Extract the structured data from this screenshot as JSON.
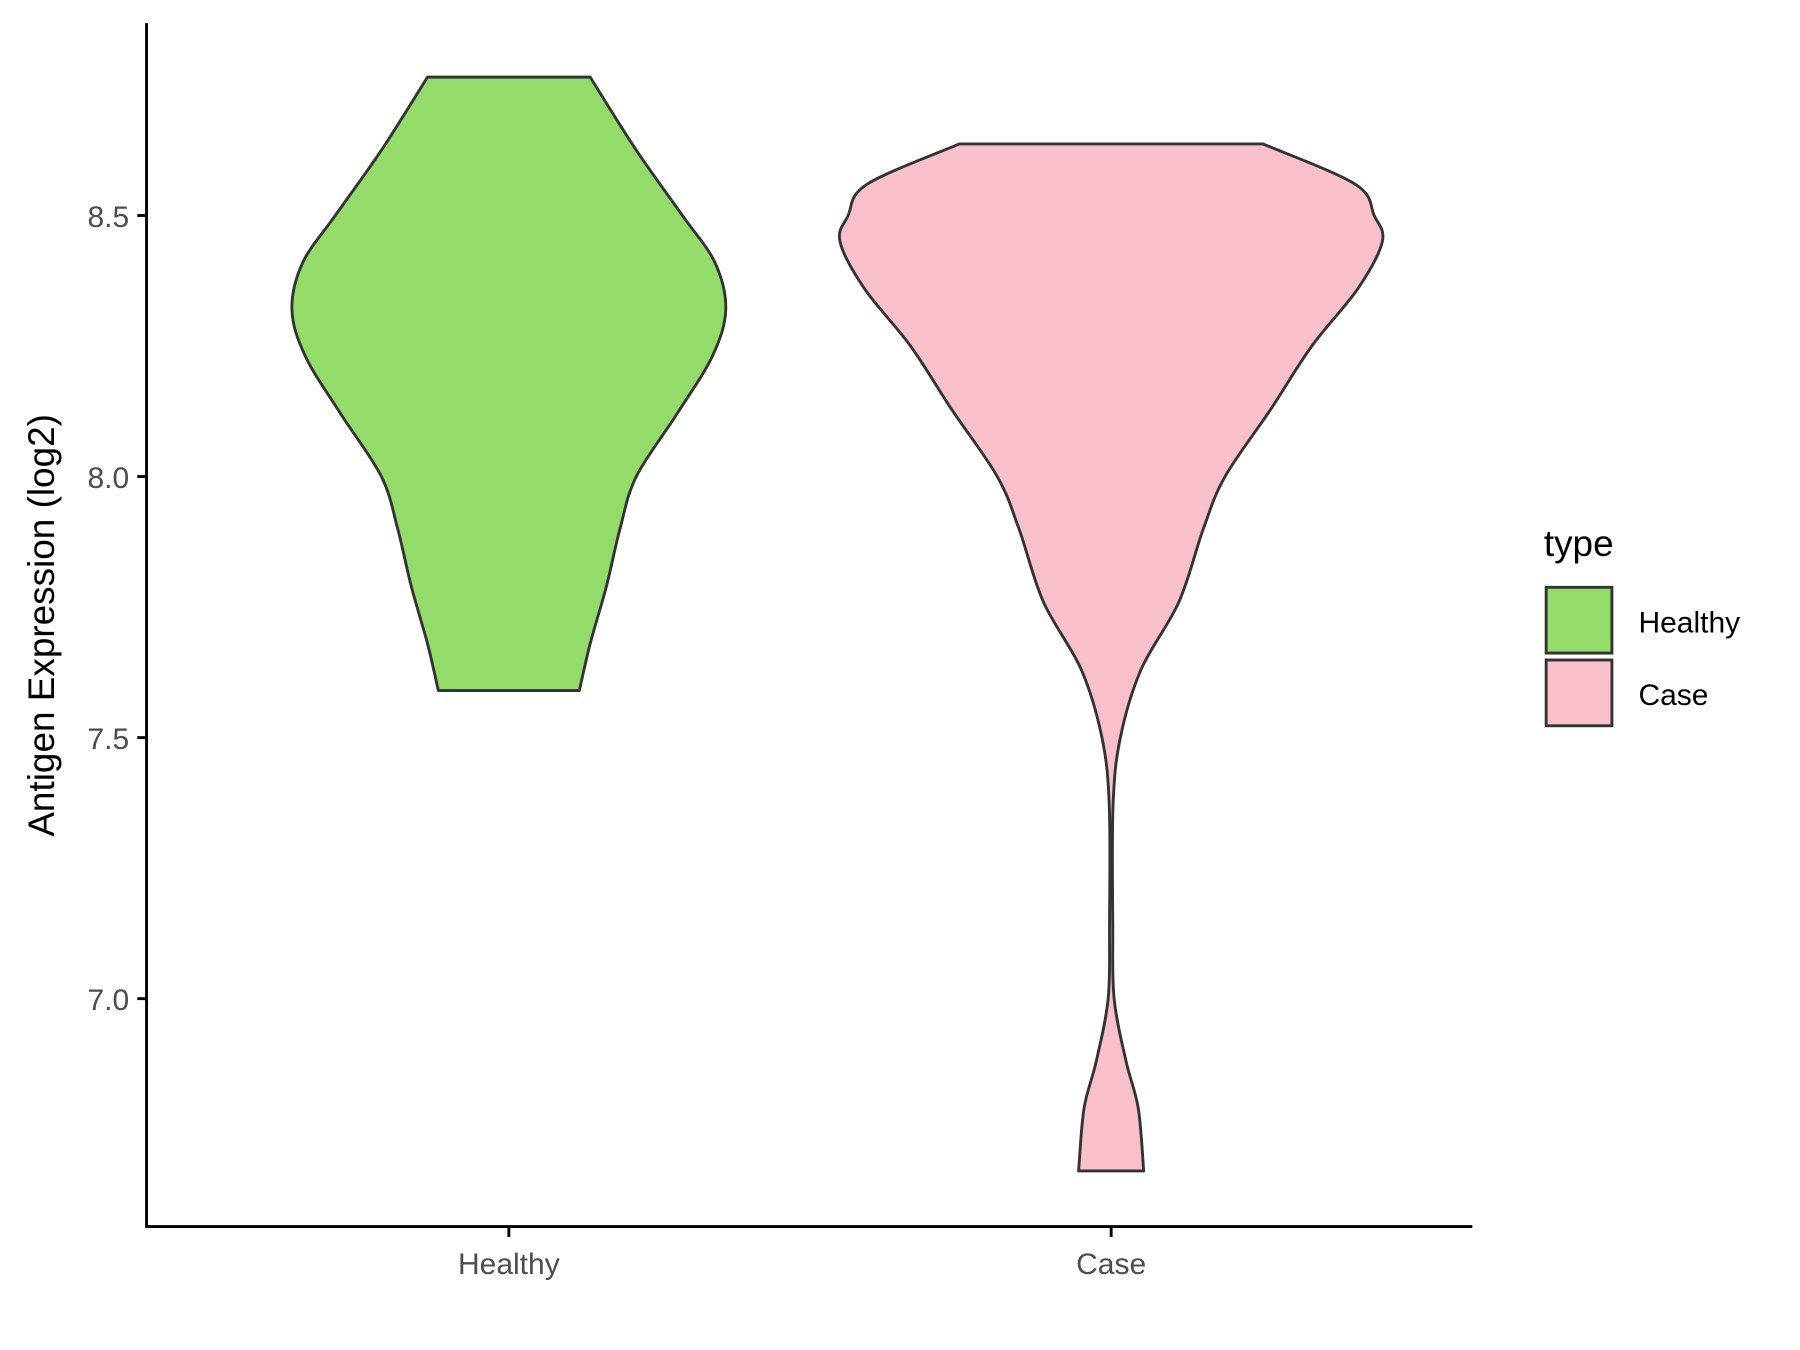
{
  "chart_data": {
    "type": "violin",
    "title": "",
    "xlabel": "",
    "ylabel": "Antigen Expression (log2)",
    "ylim": [
      6.6,
      8.87
    ],
    "yticks": [
      7.0,
      7.5,
      8.0,
      8.5
    ],
    "ytick_labels": [
      "7.0",
      "7.5",
      "8.0",
      "8.5"
    ],
    "categories": [
      "Healthy",
      "Case"
    ],
    "grid": false,
    "legend": {
      "title": "type",
      "placement": "right",
      "entries": [
        "Healthy",
        "Case"
      ]
    },
    "series": [
      {
        "name": "Healthy",
        "color": "#93DC6A",
        "min": 7.59,
        "max": 8.765,
        "density_profile": [
          [
            8.765,
            0.3
          ],
          [
            8.625,
            0.47
          ],
          [
            8.5,
            0.64
          ],
          [
            8.41,
            0.76
          ],
          [
            8.32,
            0.8
          ],
          [
            8.23,
            0.75
          ],
          [
            8.12,
            0.62
          ],
          [
            8.0,
            0.47
          ],
          [
            7.9,
            0.41
          ],
          [
            7.79,
            0.36
          ],
          [
            7.68,
            0.3
          ],
          [
            7.59,
            0.26
          ]
        ]
      },
      {
        "name": "Case",
        "color": "#F8C0CB",
        "min": 6.67,
        "max": 8.637,
        "density_profile": [
          [
            8.637,
            0.56
          ],
          [
            8.56,
            0.9
          ],
          [
            8.5,
            0.97
          ],
          [
            8.45,
            1.0
          ],
          [
            8.36,
            0.91
          ],
          [
            8.25,
            0.74
          ],
          [
            8.13,
            0.59
          ],
          [
            8.0,
            0.42
          ],
          [
            7.9,
            0.34
          ],
          [
            7.76,
            0.25
          ],
          [
            7.63,
            0.11
          ],
          [
            7.5,
            0.034
          ],
          [
            7.37,
            0.007
          ],
          [
            7.14,
            0.006
          ],
          [
            7.0,
            0.011
          ],
          [
            6.88,
            0.055
          ],
          [
            6.79,
            0.1
          ],
          [
            6.67,
            0.12
          ]
        ]
      }
    ],
    "outline_color": "#333333"
  }
}
